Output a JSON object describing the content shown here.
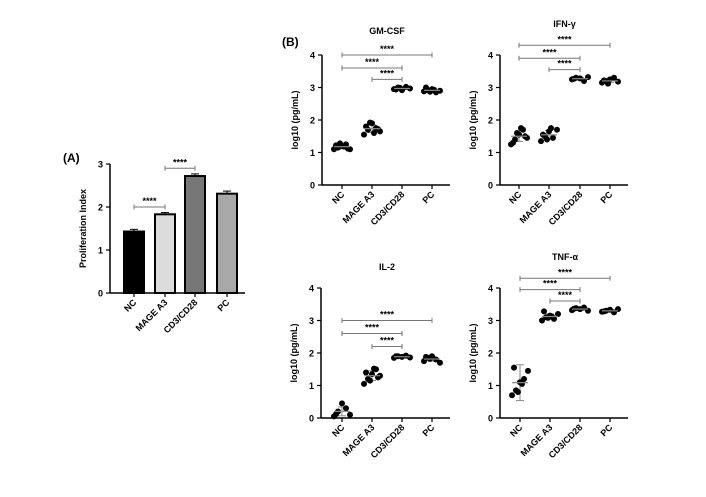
{
  "chart_data": [
    {
      "type": "bar",
      "panel": "(A)",
      "title": "",
      "ylabel": "Proliferation Index",
      "ylim": [
        0,
        3
      ],
      "yticks": [
        0,
        1,
        2,
        3
      ],
      "categories": [
        "NC",
        "MAGE A3",
        "CD3/CD28",
        "PC"
      ],
      "values": [
        1.43,
        1.83,
        2.72,
        2.31
      ],
      "errors": [
        0.05,
        0.04,
        0.05,
        0.06
      ],
      "colors": [
        "#000000",
        "#dcdcdc",
        "#777777",
        "#a8a8a8"
      ],
      "significance": [
        {
          "from": 0,
          "to": 1,
          "y": 2.0,
          "label": "****"
        },
        {
          "from": 1,
          "to": 2,
          "y": 2.9,
          "label": "****"
        }
      ]
    },
    {
      "type": "scatter",
      "panel": "(B)",
      "title": "GM-CSF",
      "ylabel": "log10 (pg/mL)",
      "ylim": [
        0,
        4
      ],
      "yticks": [
        0,
        1,
        2,
        3,
        4
      ],
      "categories": [
        "NC",
        "MAGE A3",
        "CD3/CD28",
        "PC"
      ],
      "points": [
        [
          1.1,
          1.15,
          1.2,
          1.25,
          1.1,
          1.22,
          1.28,
          1.18,
          1.12
        ],
        [
          1.55,
          1.7,
          1.9,
          1.75,
          1.65,
          1.8,
          1.92,
          1.6,
          1.72
        ],
        [
          2.95,
          3.0,
          2.92,
          3.02,
          2.97,
          2.94,
          2.99
        ],
        [
          2.88,
          2.92,
          2.95,
          2.85,
          2.9,
          3.0,
          2.87,
          2.93
        ]
      ],
      "significance": [
        {
          "from": 0,
          "to": 3,
          "y": 4.0,
          "label": "****"
        },
        {
          "from": 0,
          "to": 2,
          "y": 3.6,
          "label": "****"
        },
        {
          "from": 1,
          "to": 2,
          "y": 3.25,
          "label": "****"
        }
      ]
    },
    {
      "type": "scatter",
      "title": "IFN-γ",
      "ylabel": "log10 (pg/mL)",
      "ylim": [
        0,
        4
      ],
      "yticks": [
        0,
        1,
        2,
        3,
        4
      ],
      "categories": [
        "NC",
        "MAGE A3",
        "CD3/CD28",
        "PC"
      ],
      "points": [
        [
          1.25,
          1.4,
          1.55,
          1.7,
          1.45,
          1.3,
          1.6,
          1.75,
          1.5
        ],
        [
          1.35,
          1.5,
          1.65,
          1.45,
          1.7,
          1.55,
          1.4,
          1.75
        ],
        [
          3.25,
          3.3,
          3.28,
          3.2,
          3.32,
          3.27
        ],
        [
          3.15,
          3.2,
          3.25,
          3.3,
          3.18,
          3.22,
          3.12
        ]
      ],
      "significance": [
        {
          "from": 0,
          "to": 3,
          "y": 4.3,
          "label": "****"
        },
        {
          "from": 0,
          "to": 2,
          "y": 3.9,
          "label": "****"
        },
        {
          "from": 1,
          "to": 2,
          "y": 3.55,
          "label": "****"
        }
      ]
    },
    {
      "type": "scatter",
      "title": "IL-2",
      "ylabel": "log10 (pg/mL)",
      "ylim": [
        0,
        4
      ],
      "yticks": [
        0,
        1,
        2,
        3,
        4
      ],
      "categories": [
        "NC",
        "MAGE A3",
        "CD3/CD28",
        "PC"
      ],
      "points": [
        [
          0.05,
          0.2,
          0.45,
          0.3,
          0.1,
          0.12
        ],
        [
          1.05,
          1.2,
          1.35,
          1.5,
          1.3,
          1.4,
          1.15,
          1.52,
          1.25
        ],
        [
          1.85,
          1.9,
          1.88,
          1.92,
          1.86,
          1.9
        ],
        [
          1.75,
          1.85,
          1.9,
          1.8,
          1.7,
          1.88,
          1.82
        ]
      ],
      "significance": [
        {
          "from": 0,
          "to": 3,
          "y": 3.0,
          "label": "****"
        },
        {
          "from": 0,
          "to": 2,
          "y": 2.6,
          "label": "****"
        },
        {
          "from": 1,
          "to": 2,
          "y": 2.2,
          "label": "****"
        }
      ]
    },
    {
      "type": "scatter",
      "title": "TNF-α",
      "ylabel": "log10 (pg/mL)",
      "ylim": [
        0,
        4
      ],
      "yticks": [
        0,
        1,
        2,
        3,
        4
      ],
      "categories": [
        "NC",
        "MAGE A3",
        "CD3/CD28",
        "PC"
      ],
      "points": [
        [
          0.7,
          0.85,
          1.1,
          1.2,
          1.45,
          1.55,
          0.8,
          1.05
        ],
        [
          3.0,
          3.1,
          3.15,
          3.05,
          3.2,
          3.28,
          3.08,
          3.12
        ],
        [
          3.32,
          3.38,
          3.35,
          3.4,
          3.3,
          3.36
        ],
        [
          3.27,
          3.3,
          3.33,
          3.25,
          3.35,
          3.28
        ]
      ],
      "sd": [
        0.55,
        null,
        null,
        null
      ],
      "significance": [
        {
          "from": 0,
          "to": 3,
          "y": 4.3,
          "label": "****"
        },
        {
          "from": 0,
          "to": 2,
          "y": 3.95,
          "label": "****"
        },
        {
          "from": 1,
          "to": 2,
          "y": 3.6,
          "label": "****"
        }
      ]
    }
  ]
}
